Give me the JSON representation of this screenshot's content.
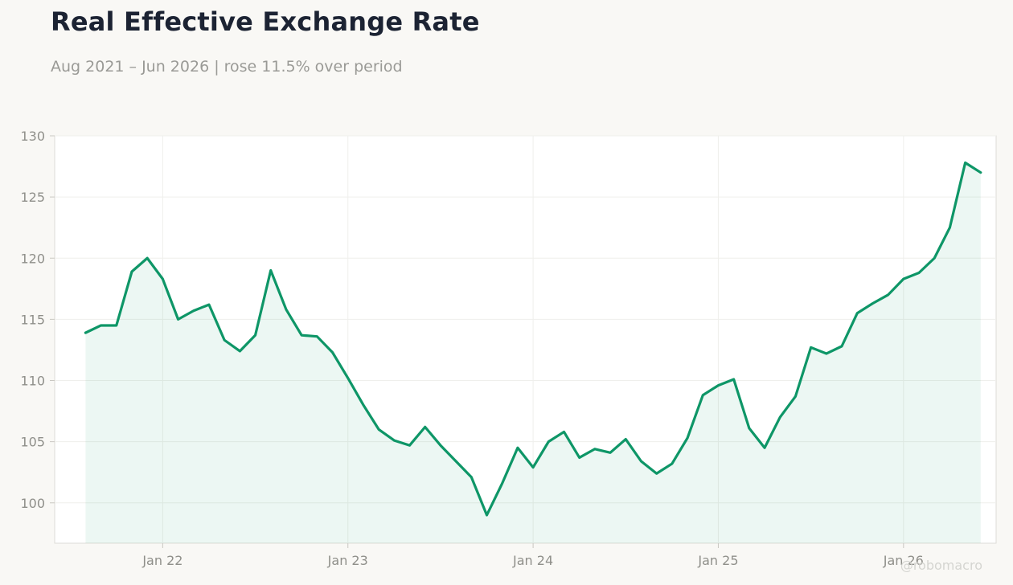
{
  "chart_data": {
    "type": "area",
    "title": "Real Effective Exchange Rate",
    "subtitle": "Aug 2021 – Jun 2026 | rose 11.5% over period",
    "xlabel": "",
    "ylabel": "",
    "x_ticks": [
      "Jan 22",
      "Jan 23",
      "Jan 24",
      "Jan 25",
      "Jan 26"
    ],
    "y_ticks": [
      100,
      105,
      110,
      115,
      120,
      125,
      130
    ],
    "ylim": [
      96.7,
      130
    ],
    "xlim": [
      "2021-06",
      "2026-07"
    ],
    "grid": true,
    "line_color": "#0e9667",
    "fill_color": "#0e9667",
    "series": [
      {
        "x": [
          "2021-08",
          "2021-09",
          "2021-10",
          "2021-11",
          "2021-12",
          "2022-01",
          "2022-02",
          "2022-03",
          "2022-04",
          "2022-05",
          "2022-06",
          "2022-07",
          "2022-08",
          "2022-09",
          "2022-10",
          "2022-11",
          "2022-12",
          "2023-01",
          "2023-02",
          "2023-03",
          "2023-04",
          "2023-05",
          "2023-06",
          "2023-07",
          "2023-08",
          "2023-09",
          "2023-10",
          "2023-11",
          "2023-12",
          "2024-01",
          "2024-02",
          "2024-03",
          "2024-04",
          "2024-05",
          "2024-06",
          "2024-07",
          "2024-08",
          "2024-09",
          "2024-10",
          "2024-11",
          "2024-12",
          "2025-01",
          "2025-02",
          "2025-03",
          "2025-04",
          "2025-05",
          "2025-06",
          "2025-07",
          "2025-08",
          "2025-09",
          "2025-10",
          "2025-11",
          "2025-12",
          "2026-01",
          "2026-02",
          "2026-03",
          "2026-04",
          "2026-05",
          "2026-06"
        ],
        "values": [
          113.9,
          114.5,
          114.5,
          118.9,
          120.0,
          118.3,
          115.0,
          115.7,
          116.2,
          113.3,
          112.4,
          113.7,
          119.0,
          115.8,
          113.7,
          113.6,
          112.3,
          110.2,
          108.0,
          106.0,
          105.1,
          104.7,
          106.2,
          104.7,
          103.4,
          102.1,
          99.0,
          101.6,
          104.5,
          102.9,
          105.0,
          105.8,
          103.7,
          104.4,
          104.1,
          105.2,
          103.4,
          102.4,
          103.2,
          105.3,
          108.8,
          109.6,
          110.1,
          106.1,
          104.5,
          107.0,
          108.7,
          112.7,
          112.2,
          112.8,
          115.5,
          116.3,
          117.0,
          118.3,
          118.8,
          120.0,
          122.5,
          127.8,
          127.0
        ]
      }
    ]
  },
  "watermark": "@robomacro"
}
